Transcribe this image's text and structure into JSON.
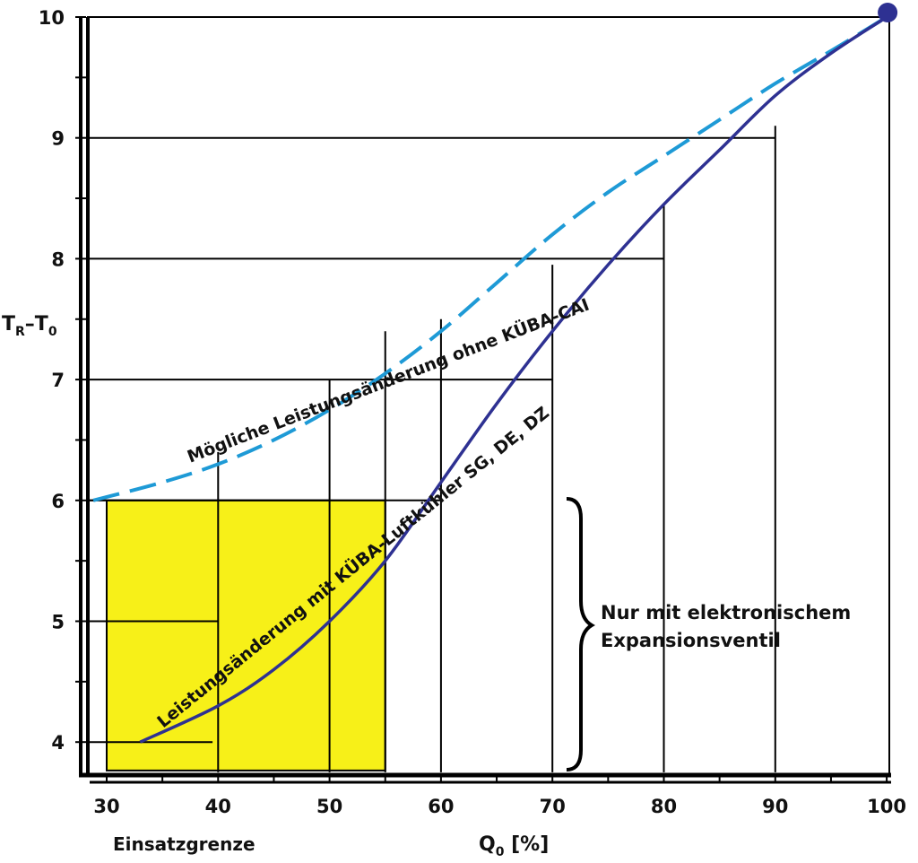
{
  "chart_data": {
    "type": "line",
    "xlabel": "Q",
    "xlabel_sub": "0",
    "xlabel_suffix": " [%]",
    "ylabel": "T",
    "ylabel_sub1": "R",
    "ylabel_mid": "–T",
    "ylabel_sub2": "0",
    "xlim": [
      30,
      100
    ],
    "ylim": [
      3.75,
      10
    ],
    "x_ticks": [
      30,
      40,
      50,
      60,
      70,
      80,
      90,
      100
    ],
    "y_ticks": [
      4,
      5,
      6,
      7,
      8,
      9,
      10
    ],
    "series": [
      {
        "name": "Mögliche Leistungsänderung ohne KÜBA-CAI",
        "style": "dashed",
        "color": "#1e9ad6",
        "x": [
          28.8,
          35,
          40,
          45,
          50,
          55,
          60,
          65,
          70,
          75,
          80,
          85,
          90,
          95,
          100
        ],
        "y": [
          6.0,
          6.15,
          6.3,
          6.5,
          6.75,
          7.05,
          7.4,
          7.8,
          8.2,
          8.55,
          8.85,
          9.15,
          9.45,
          9.72,
          10.0
        ]
      },
      {
        "name": "Leistungsänderung mit KÜBA-Luftkühler SG, DE, DZ",
        "style": "solid",
        "color": "#2e3192",
        "x": [
          33,
          40,
          45,
          50,
          55,
          60,
          65,
          70,
          75,
          80,
          85,
          90,
          95,
          100
        ],
        "y": [
          4.0,
          4.3,
          4.6,
          5.0,
          5.5,
          6.15,
          6.8,
          7.4,
          7.95,
          8.45,
          8.9,
          9.35,
          9.7,
          10.0
        ]
      }
    ],
    "endpoint": {
      "x": 100,
      "y": 10,
      "color": "#2e3192"
    },
    "highlight_region": {
      "x": [
        30,
        55
      ],
      "y": [
        3.75,
        6
      ],
      "color": "#f7f018",
      "label": "Einsatzgrenze"
    },
    "guide_lines": [
      {
        "x": 40,
        "y": 5
      },
      {
        "x": 50,
        "y": 6
      },
      {
        "x": 60,
        "y": 6
      },
      {
        "x": 70,
        "y": 7
      },
      {
        "x": 80,
        "y": 8
      },
      {
        "x": 90,
        "y": 9
      }
    ],
    "vertical_guides": [
      {
        "x": 40,
        "from": 3.75,
        "to": 6.4
      },
      {
        "x": 50,
        "from": 3.75,
        "to": 7.0
      },
      {
        "x": 55,
        "from": 3.75,
        "to": 7.4
      },
      {
        "x": 60,
        "from": 3.75,
        "to": 7.5
      },
      {
        "x": 70,
        "from": 3.75,
        "to": 7.95
      },
      {
        "x": 80,
        "from": 3.75,
        "to": 8.45
      },
      {
        "x": 90,
        "from": 3.75,
        "to": 9.1
      }
    ],
    "brace_annotation": {
      "line1": "Nur mit elektronischem",
      "line2": "Expansionsventil",
      "y_range": [
        3.8,
        6.0
      ]
    },
    "curve_labels": {
      "upper": "Mögliche Leistungsänderung ohne KÜBA-CAI",
      "lower": "Leistungsänderung mit KÜBA-Luftkühler SG, DE, DZ"
    }
  }
}
